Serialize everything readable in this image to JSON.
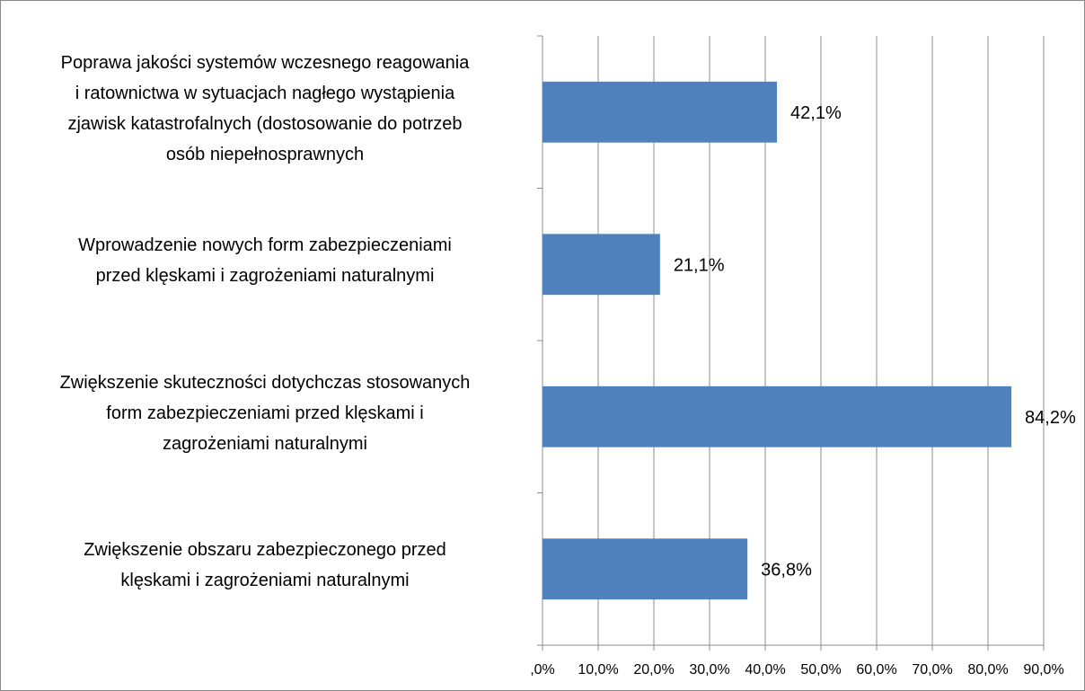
{
  "chart_data": {
    "type": "barh",
    "categories": [
      "Poprawa jakości systemów wczesnego reagowania\ni ratownictwa w sytuacjach nagłego wystąpienia\nzjawisk katastrofalnych (dostosowanie do potrzeb\nosób niepełnosprawnych",
      "Wprowadzenie nowych form zabezpieczeniami\nprzed klęskami i zagrożeniami naturalnymi",
      "Zwiększenie skuteczności dotychczas stosowanych\nform zabezpieczeniami przed klęskami i\nzagrożeniami naturalnymi",
      "Zwiększenie obszaru zabezpieczonego przed\nklęskami i zagrożeniami naturalnymi"
    ],
    "values": [
      42.1,
      21.1,
      84.2,
      36.8
    ],
    "value_labels": [
      "42,1%",
      "21,1%",
      "84,2%",
      "36,8%"
    ],
    "color": "#4f81bd",
    "xlim": [
      0,
      90
    ],
    "xticks": [
      {
        "value": 0,
        "label": ",0%"
      },
      {
        "value": 10,
        "label": "10,0%"
      },
      {
        "value": 20,
        "label": "20,0%"
      },
      {
        "value": 30,
        "label": "30,0%"
      },
      {
        "value": 40,
        "label": "40,0%"
      },
      {
        "value": 50,
        "label": "50,0%"
      },
      {
        "value": 60,
        "label": "60,0%"
      },
      {
        "value": 70,
        "label": "70,0%"
      },
      {
        "value": 80,
        "label": "80,0%"
      },
      {
        "value": 90,
        "label": "90,0%"
      }
    ],
    "grid": true
  }
}
